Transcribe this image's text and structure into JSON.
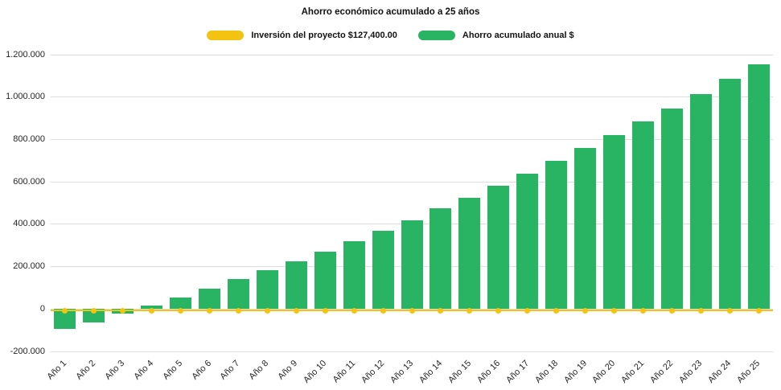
{
  "chart_data": {
    "type": "bar",
    "title": "Ahorro económico acumulado a 25 años",
    "categories": [
      "Año 1",
      "Año 2",
      "Año 3",
      "Año 4",
      "Año 5",
      "Año 6",
      "Año 7",
      "Año 8",
      "Año 9",
      "Año 10",
      "Año 11",
      "Año 12",
      "Año 13",
      "Año 14",
      "Año 15",
      "Año 16",
      "Año 17",
      "Año 18",
      "Año 19",
      "Año 20",
      "Año 21",
      "Año 22",
      "Año 23",
      "Año 24",
      "Año 25"
    ],
    "series": [
      {
        "name": "Inversión del proyecto $127,400.00",
        "type": "line",
        "color": "#f2c411",
        "constant_value": -8000
      },
      {
        "name": "Ahorro acumulado anual $",
        "type": "bar",
        "color": "#28b463",
        "values": [
          -95000,
          -65000,
          -20000,
          15000,
          55000,
          95000,
          140000,
          185000,
          225000,
          270000,
          320000,
          370000,
          420000,
          475000,
          525000,
          580000,
          640000,
          700000,
          760000,
          820000,
          885000,
          945000,
          1015000,
          1085000,
          1155000
        ]
      }
    ],
    "ylim": [
      -200000,
      1200000
    ],
    "yticks": [
      {
        "value": 1200000,
        "label": "1.200.000"
      },
      {
        "value": 1000000,
        "label": "1.000.000"
      },
      {
        "value": 800000,
        "label": "800.000"
      },
      {
        "value": 600000,
        "label": "600.000"
      },
      {
        "value": 400000,
        "label": "400.000"
      },
      {
        "value": 200000,
        "label": "200.000"
      },
      {
        "value": 0,
        "label": "0"
      },
      {
        "value": -200000,
        "label": "-200.000"
      }
    ],
    "grid": true,
    "legend_position": "top",
    "xlabel": "",
    "ylabel": ""
  }
}
